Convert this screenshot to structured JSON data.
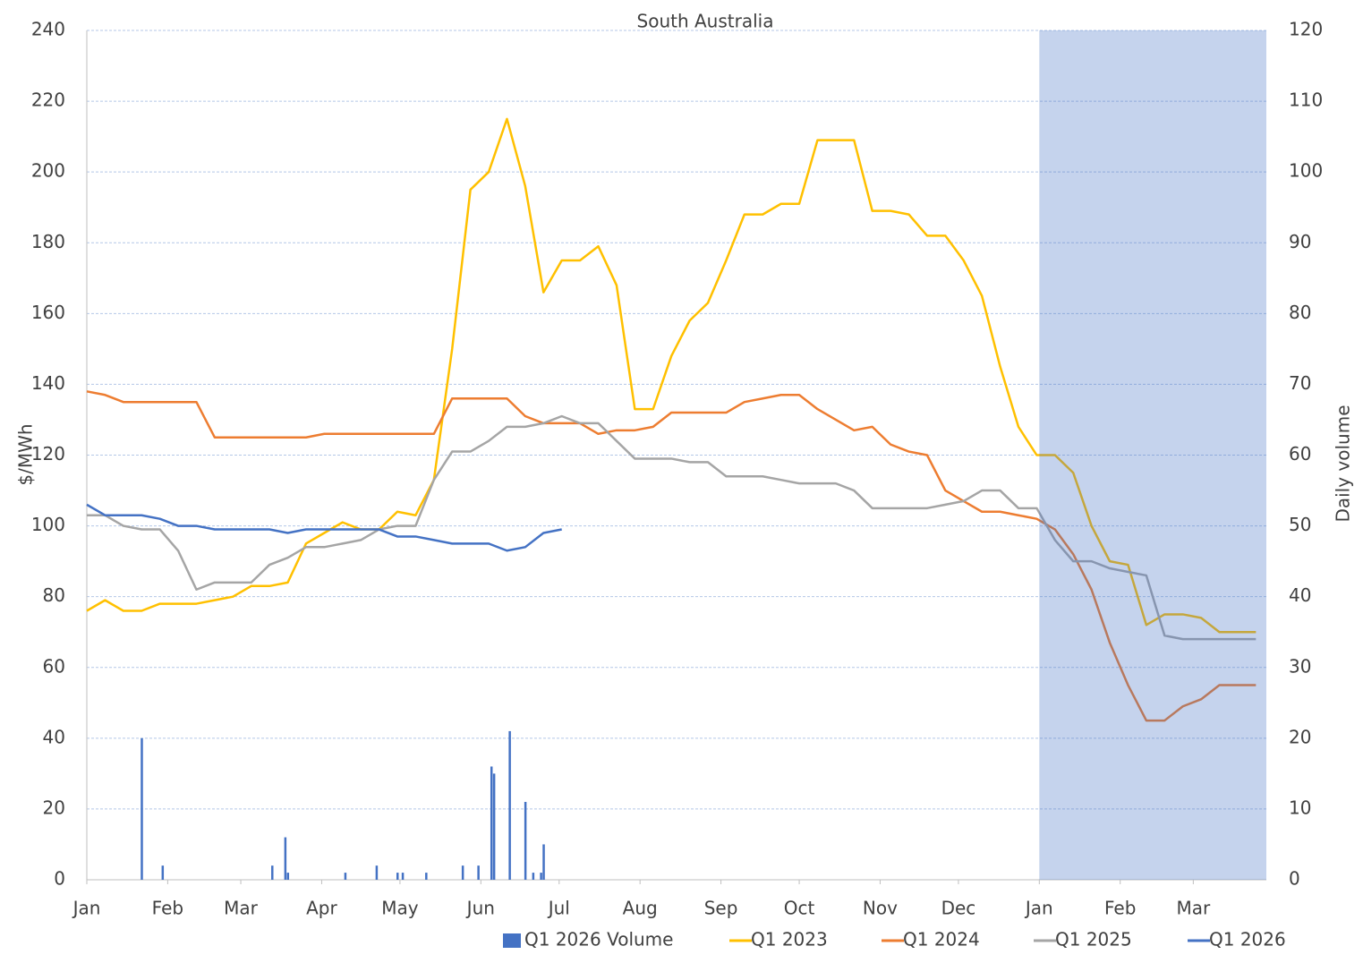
{
  "chart_data": {
    "type": "line",
    "title": "South Australia",
    "y_label": "$/MWh",
    "y2_label": "Daily volume",
    "x": [
      0,
      7,
      14,
      21,
      28,
      35,
      42,
      49,
      56,
      63,
      70,
      77,
      84,
      91,
      98,
      105,
      112,
      119,
      126,
      133,
      140,
      147,
      154,
      161,
      168,
      175,
      182,
      189,
      196,
      203,
      210,
      217,
      224,
      231,
      238,
      245,
      252,
      259,
      266,
      273,
      280,
      287,
      294,
      301,
      308,
      315,
      322,
      329,
      336,
      343,
      350,
      357,
      364,
      371,
      378,
      385,
      392,
      399,
      406,
      413,
      420,
      427,
      434,
      441,
      448
    ],
    "xlim": [
      0,
      452
    ],
    "xticks": [
      {
        "value": 0,
        "label": "Jan"
      },
      {
        "value": 31,
        "label": "Feb"
      },
      {
        "value": 59,
        "label": "Mar"
      },
      {
        "value": 90,
        "label": "Apr"
      },
      {
        "value": 120,
        "label": "May"
      },
      {
        "value": 151,
        "label": "Jun"
      },
      {
        "value": 181,
        "label": "Jul"
      },
      {
        "value": 212,
        "label": "Aug"
      },
      {
        "value": 243,
        "label": "Sep"
      },
      {
        "value": 273,
        "label": "Oct"
      },
      {
        "value": 304,
        "label": "Nov"
      },
      {
        "value": 334,
        "label": "Dec"
      },
      {
        "value": 365,
        "label": "Jan"
      },
      {
        "value": 396,
        "label": "Feb"
      },
      {
        "value": 424,
        "label": "Mar"
      }
    ],
    "ylim": [
      0,
      240
    ],
    "yticks": [
      0,
      20,
      40,
      60,
      80,
      100,
      120,
      140,
      160,
      180,
      200,
      220,
      240
    ],
    "y2lim": [
      0,
      120
    ],
    "y2ticks": [
      0,
      10,
      20,
      30,
      40,
      50,
      60,
      70,
      80,
      90,
      100,
      110,
      120
    ],
    "grid": true,
    "highlight_xrange": [
      365,
      452
    ],
    "highlight_color": "#4472c4",
    "series": [
      {
        "name": "Q1 2026 Volume",
        "type": "bar",
        "axis": "y2",
        "color": "#4472c4",
        "x": [
          21,
          29,
          71,
          76,
          77,
          99,
          111,
          119,
          121,
          130,
          144,
          150,
          155,
          156,
          162,
          168,
          171,
          174,
          175
        ],
        "values": [
          20,
          2,
          2,
          6,
          1,
          1,
          2,
          1,
          1,
          1,
          2,
          2,
          16,
          15,
          21,
          11,
          1,
          1,
          5
        ]
      },
      {
        "name": "Q1 2023",
        "color": "#ffc000",
        "values": [
          76,
          79,
          76,
          76,
          78,
          78,
          78,
          79,
          80,
          83,
          83,
          84,
          95,
          98,
          101,
          99,
          99,
          104,
          103,
          113,
          150,
          195,
          200,
          215,
          196,
          166,
          175,
          175,
          179,
          168,
          133,
          133,
          148,
          158,
          163,
          175,
          188,
          188,
          191,
          191,
          209,
          209,
          209,
          189,
          189,
          188,
          182,
          182,
          175,
          165,
          145,
          128,
          120,
          120,
          115,
          100,
          90,
          89,
          72,
          75,
          75,
          74,
          70,
          70,
          70
        ]
      },
      {
        "name": "Q1 2024",
        "color": "#ed7d31",
        "values": [
          138,
          137,
          135,
          135,
          135,
          135,
          135,
          125,
          125,
          125,
          125,
          125,
          125,
          126,
          126,
          126,
          126,
          126,
          126,
          126,
          136,
          136,
          136,
          136,
          131,
          129,
          129,
          129,
          126,
          127,
          127,
          128,
          132,
          132,
          132,
          132,
          135,
          136,
          137,
          137,
          133,
          130,
          127,
          128,
          123,
          121,
          120,
          110,
          107,
          104,
          104,
          103,
          102,
          99,
          92,
          82,
          67,
          55,
          45,
          45,
          49,
          51,
          55,
          55,
          55
        ]
      },
      {
        "name": "Q1 2025",
        "color": "#a5a5a5",
        "values": [
          103,
          103,
          100,
          99,
          99,
          93,
          82,
          84,
          84,
          84,
          89,
          91,
          94,
          94,
          95,
          96,
          99,
          100,
          100,
          113,
          121,
          121,
          124,
          128,
          128,
          129,
          131,
          129,
          129,
          124,
          119,
          119,
          119,
          118,
          118,
          114,
          114,
          114,
          113,
          112,
          112,
          112,
          110,
          105,
          105,
          105,
          105,
          106,
          107,
          110,
          110,
          105,
          105,
          96,
          90,
          90,
          88,
          87,
          86,
          69,
          68,
          68,
          68,
          68,
          68
        ]
      },
      {
        "name": "Q1 2026",
        "color": "#4472c4",
        "values": [
          106,
          103,
          103,
          103,
          102,
          100,
          100,
          99,
          99,
          99,
          99,
          98,
          99,
          99,
          99,
          99,
          99,
          97,
          97,
          96,
          95,
          95,
          95,
          93,
          94,
          98,
          99,
          null,
          null,
          null,
          null,
          null,
          null,
          null,
          null,
          null,
          null,
          null,
          null,
          null,
          null,
          null,
          null,
          null,
          null,
          null,
          null,
          null,
          null,
          null,
          null,
          null,
          null,
          null,
          null,
          null,
          null,
          null,
          null,
          null,
          null,
          null,
          null,
          null,
          null
        ]
      }
    ]
  }
}
